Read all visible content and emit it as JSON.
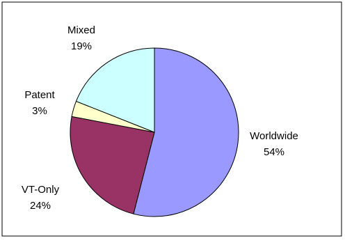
{
  "chart_data": {
    "type": "pie",
    "title": "",
    "start_angle_deg": 0,
    "direction": "clockwise",
    "slices": [
      {
        "label": "Worldwide",
        "value": 54,
        "value_label": "54%",
        "color": "#9999ff"
      },
      {
        "label": "VT-Only",
        "value": 24,
        "value_label": "24%",
        "color": "#993366"
      },
      {
        "label": "Patent",
        "value": 3,
        "value_label": "3%",
        "color": "#ffffcc"
      },
      {
        "label": "Mixed",
        "value": 19,
        "value_label": "19%",
        "color": "#ccffff"
      }
    ],
    "legend": "none",
    "border_color": "#000000"
  }
}
